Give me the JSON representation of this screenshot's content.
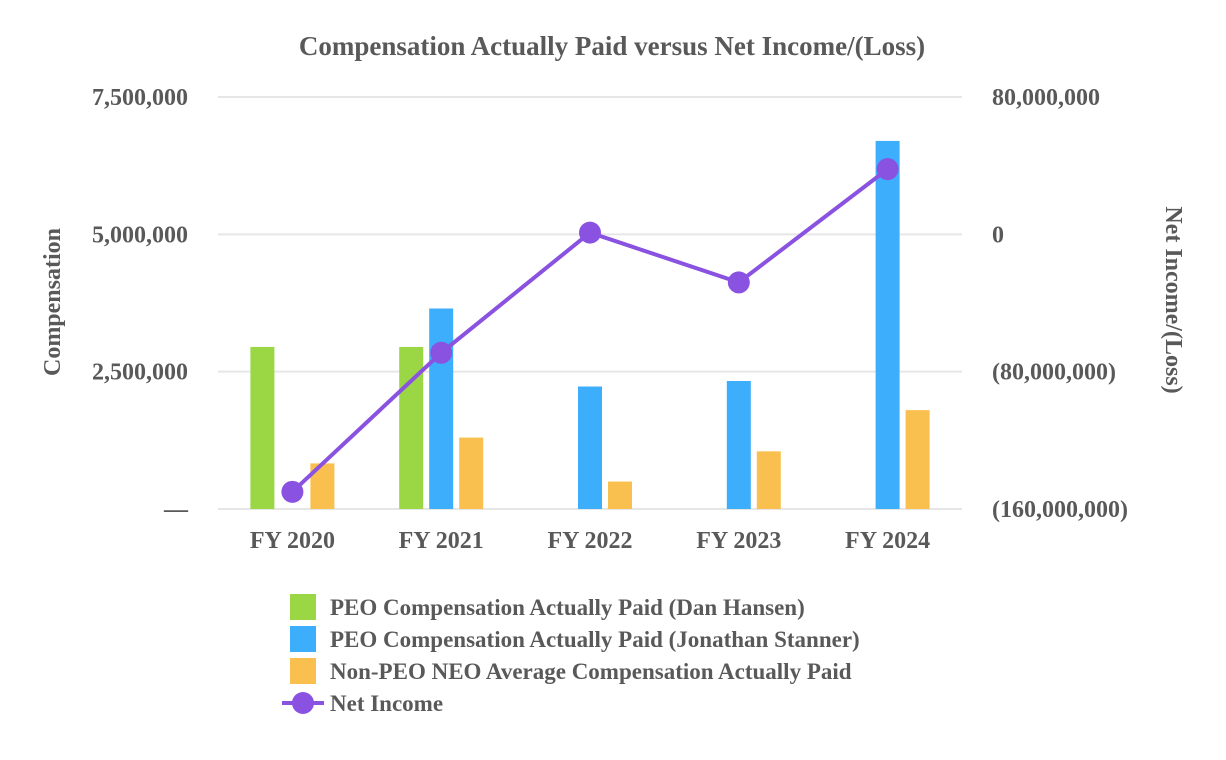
{
  "chart_data": {
    "type": "bar",
    "title": "Compensation Actually Paid versus Net Income/(Loss)",
    "categories": [
      "FY 2020",
      "FY 2021",
      "FY 2022",
      "FY 2023",
      "FY 2024"
    ],
    "ylabel": "Compensation",
    "y2label": "Net Income/(Loss)",
    "ylim": [
      0,
      7500000
    ],
    "y2lim": [
      -160000000,
      80000000
    ],
    "yticks": [
      "—",
      "2,500,000",
      "5,000,000",
      "7,500,000"
    ],
    "y2ticks": [
      "(160,000,000)",
      "(80,000,000)",
      "0",
      "80,000,000"
    ],
    "grid": true,
    "legend_position": "bottom",
    "series": [
      {
        "name": "PEO Compensation Actually Paid (Dan Hansen)",
        "type": "bar",
        "axis": "left",
        "color": "#9bd744",
        "values": [
          2950000,
          2950000,
          null,
          null,
          null
        ]
      },
      {
        "name": "PEO Compensation Actually Paid (Jonathan Stanner)",
        "type": "bar",
        "axis": "left",
        "color": "#3daefc",
        "values": [
          null,
          3650000,
          2230000,
          2330000,
          6700000
        ]
      },
      {
        "name": "Non-PEO NEO Average Compensation Actually Paid",
        "type": "bar",
        "axis": "left",
        "color": "#f9c04f",
        "values": [
          830000,
          1300000,
          500000,
          1050000,
          1800000
        ]
      },
      {
        "name": "Net Income",
        "type": "line",
        "axis": "right",
        "color": "#8a52e0",
        "values": [
          -150000000,
          -69000000,
          1000000,
          -28000000,
          38000000
        ]
      }
    ]
  }
}
